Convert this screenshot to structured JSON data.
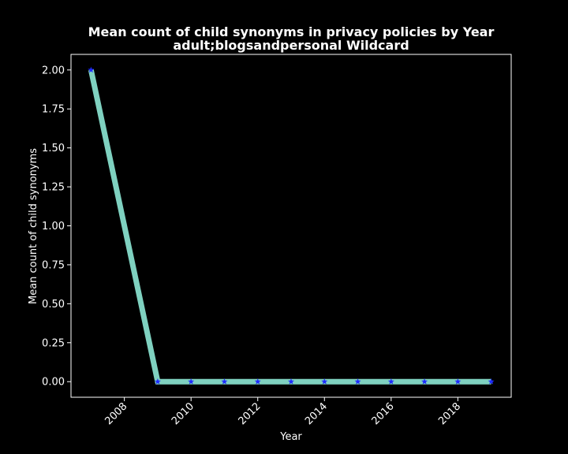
{
  "chart_data": {
    "type": "line",
    "title": "Mean count of child synonyms in privacy policies by Year",
    "subtitle": "adult;blogsandpersonal Wildcard",
    "xlabel": "Year",
    "ylabel": "Mean count of child synonyms",
    "x": [
      2007,
      2009,
      2010,
      2011,
      2012,
      2013,
      2014,
      2015,
      2016,
      2017,
      2018,
      2019
    ],
    "series": [
      {
        "values": [
          2.0,
          0.0,
          0.0,
          0.0,
          0.0,
          0.0,
          0.0,
          0.0,
          0.0,
          0.0,
          0.0,
          0.0
        ],
        "line_color": "#7fd1c0",
        "marker_color": "#1f2bff",
        "marker": "star"
      }
    ],
    "xlim": [
      2006.4,
      2019.6
    ],
    "ylim": [
      -0.1,
      2.1
    ],
    "xticks": [
      "2008",
      "2010",
      "2012",
      "2014",
      "2016",
      "2018"
    ],
    "yticks": [
      "0.00",
      "0.25",
      "0.50",
      "0.75",
      "1.00",
      "1.25",
      "1.50",
      "1.75",
      "2.00"
    ],
    "grid": false,
    "background": "#000000",
    "foreground": "#ffffff"
  }
}
